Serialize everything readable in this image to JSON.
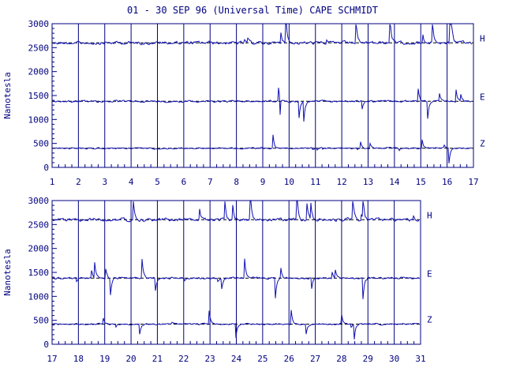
{
  "title": "01 - 30 SEP 96 (Universal Time) CAPE SCHMIDT",
  "colors": {
    "axis": "#000080",
    "trace": "#1010b0",
    "baseline": "#000000"
  },
  "chart_data": [
    {
      "type": "line",
      "ylabel": "Nanotesla",
      "xlim": [
        1,
        17
      ],
      "ylim": [
        0,
        3000
      ],
      "x_ticks": [
        "1",
        "2",
        "3",
        "4",
        "5",
        "6",
        "7",
        "8",
        "9",
        "10",
        "11",
        "12",
        "13",
        "14",
        "15",
        "16",
        "17"
      ],
      "y_ticks": [
        "0",
        "500",
        "1000",
        "1500",
        "2000",
        "2500",
        "3000"
      ],
      "day_gridlines": true,
      "series": [
        {
          "name": "H",
          "baseline": 2600
        },
        {
          "name": "E",
          "baseline": 1380
        },
        {
          "name": "Z",
          "baseline": 400
        }
      ]
    },
    {
      "type": "line",
      "ylabel": "Nanotesla",
      "xlim": [
        17,
        31
      ],
      "ylim": [
        0,
        3000
      ],
      "x_ticks": [
        "17",
        "18",
        "19",
        "20",
        "21",
        "22",
        "23",
        "24",
        "25",
        "26",
        "27",
        "28",
        "29",
        "30",
        "31"
      ],
      "y_ticks": [
        "0",
        "500",
        "1000",
        "1500",
        "2000",
        "2500",
        "3000"
      ],
      "day_gridlines": true,
      "series": [
        {
          "name": "H",
          "baseline": 2600
        },
        {
          "name": "E",
          "baseline": 1380
        },
        {
          "name": "Z",
          "baseline": 420
        }
      ]
    }
  ]
}
